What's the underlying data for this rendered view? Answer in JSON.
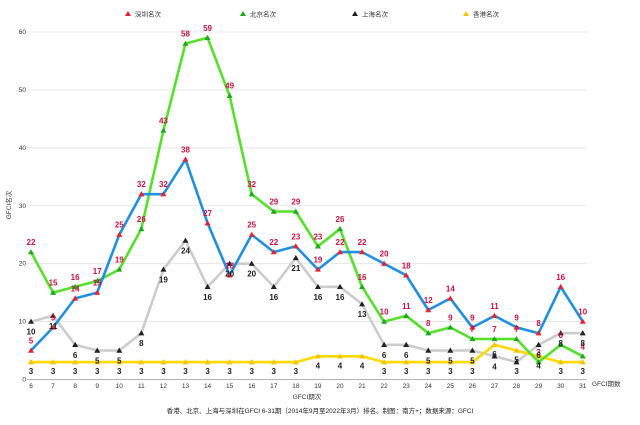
{
  "chart_data": {
    "type": "line",
    "title": "",
    "xlabel": "GFCI期次",
    "ylabel": "GFCI名次",
    "x_suffix_label": "GFCI期数",
    "caption": "香港、北京、上海与深圳在GFCI 6-31期（2014年9月至2022年3月）排名。制图：南方+；数据来源：GFCI",
    "x": [
      6,
      7,
      8,
      9,
      10,
      11,
      12,
      13,
      14,
      15,
      16,
      17,
      18,
      19,
      20,
      21,
      22,
      23,
      24,
      25,
      26,
      27,
      28,
      29,
      30,
      31
    ],
    "ylim": [
      0,
      60
    ],
    "yticks": [
      0,
      10,
      20,
      30,
      40,
      50,
      60
    ],
    "grid": true,
    "legend_position": "top",
    "series": [
      {
        "name": "深圳名次",
        "color": "#1f8fe0",
        "marker_color": "#e8222e",
        "label_color": "#cc1144",
        "values": [
          5,
          9,
          14,
          15,
          25,
          32,
          32,
          38,
          27,
          18,
          25,
          22,
          23,
          19,
          22,
          22,
          20,
          18,
          12,
          14,
          9,
          11,
          9,
          8,
          16,
          10
        ]
      },
      {
        "name": "北京名次",
        "color": "#55e02a",
        "marker_color": "#1fa81f",
        "label_color": "#cc1144",
        "values": [
          22,
          15,
          16,
          17,
          19,
          26,
          43,
          58,
          59,
          49,
          32,
          29,
          29,
          23,
          26,
          16,
          10,
          11,
          8,
          9,
          7,
          7,
          7,
          3,
          6,
          4
        ]
      },
      {
        "name": "上海名次",
        "color": "#cccccc",
        "marker_color": "#222222",
        "label_color": "#222222",
        "values": [
          10,
          11,
          6,
          5,
          5,
          8,
          19,
          24,
          16,
          20,
          20,
          16,
          21,
          16,
          16,
          13,
          6,
          6,
          5,
          5,
          5,
          4,
          3,
          6,
          8,
          8
        ]
      },
      {
        "name": "香港名次",
        "color": "#ffd900",
        "marker_color": "#f5c400",
        "label_color": "#222222",
        "values": [
          3,
          3,
          3,
          3,
          3,
          3,
          3,
          3,
          3,
          3,
          3,
          3,
          3,
          4,
          4,
          4,
          3,
          3,
          3,
          3,
          3,
          6,
          5,
          4,
          3,
          3
        ]
      }
    ]
  }
}
